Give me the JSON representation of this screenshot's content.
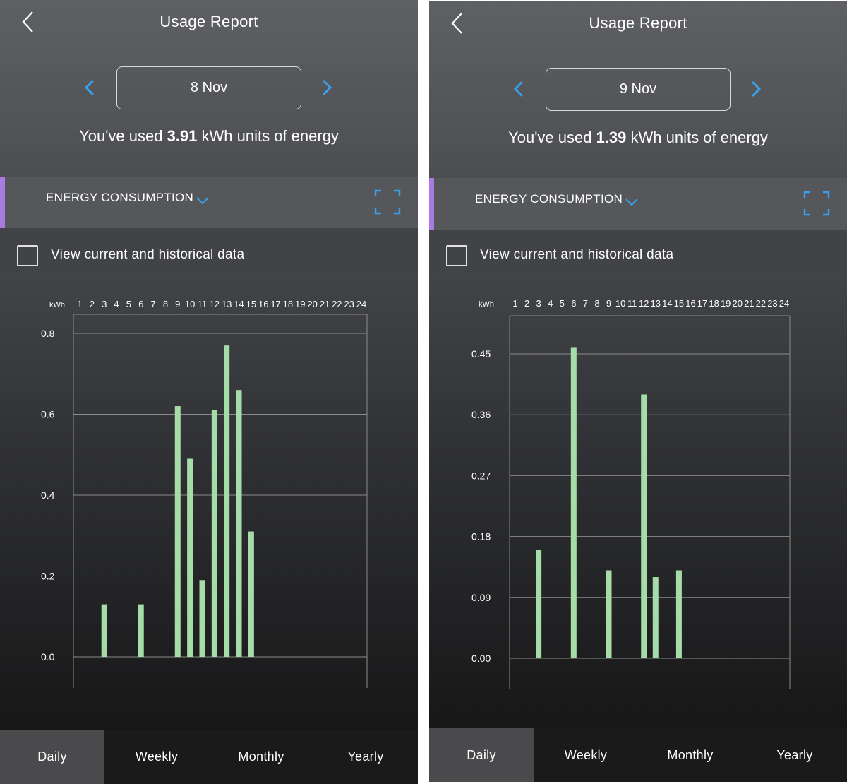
{
  "colors": {
    "accent": "#a97be0",
    "arrow": "#3aa0e8",
    "bar": "#a6dca8",
    "grid": "#8a8a8a",
    "active_tab": "#4a4a4c"
  },
  "icons": {
    "back": "chevron-left-icon",
    "prev": "chevron-left-icon",
    "next": "chevron-right-icon",
    "dropdown": "chevron-down-icon",
    "expand": "expand-icon",
    "checkbox": "checkbox-icon"
  },
  "left": {
    "title": "Usage Report",
    "date": "8 Nov",
    "usage": {
      "prefix": "You've used ",
      "value": "3.91",
      "suffix": " kWh units of energy"
    },
    "section_label": "ENERGY CONSUMPTION",
    "historical_label": "View current and historical data",
    "tabs": [
      {
        "label": "Daily",
        "active": true
      },
      {
        "label": "Weekly",
        "active": false
      },
      {
        "label": "Monthly",
        "active": false
      },
      {
        "label": "Yearly",
        "active": false
      }
    ]
  },
  "right": {
    "title": "Usage Report",
    "date": "9 Nov",
    "usage": {
      "prefix": "You've used ",
      "value": "1.39",
      "suffix": " kWh units of energy"
    },
    "section_label": "ENERGY CONSUMPTION",
    "historical_label": "View current and historical data",
    "tabs": [
      {
        "label": "Daily",
        "active": true
      },
      {
        "label": "Weekly",
        "active": false
      },
      {
        "label": "Monthly",
        "active": false
      },
      {
        "label": "Yearly",
        "active": false
      }
    ]
  },
  "chart_data": [
    {
      "type": "bar",
      "ylabel": "kWh",
      "categories": [
        "1",
        "2",
        "3",
        "4",
        "5",
        "6",
        "7",
        "8",
        "9",
        "10",
        "11",
        "12",
        "13",
        "14",
        "15",
        "16",
        "17",
        "18",
        "19",
        "20",
        "21",
        "22",
        "23",
        "24"
      ],
      "values": [
        0,
        0,
        0.13,
        0,
        0,
        0.13,
        0,
        0,
        0.62,
        0.49,
        0.19,
        0.61,
        0.77,
        0.66,
        0.31,
        0,
        0,
        0,
        0,
        0,
        0,
        0,
        0,
        0
      ],
      "yticks": [
        "0.0",
        "0.2",
        "0.4",
        "0.6",
        "0.8"
      ],
      "ylim": [
        0,
        0.8
      ],
      "grid": true
    },
    {
      "type": "bar",
      "ylabel": "kWh",
      "categories": [
        "1",
        "2",
        "3",
        "4",
        "5",
        "6",
        "7",
        "8",
        "9",
        "10",
        "11",
        "12",
        "13",
        "14",
        "15",
        "16",
        "17",
        "18",
        "19",
        "20",
        "21",
        "22",
        "23",
        "24"
      ],
      "values": [
        0,
        0,
        0.16,
        0,
        0,
        0.46,
        0,
        0,
        0.13,
        0,
        0,
        0.39,
        0.12,
        0,
        0.13,
        0,
        0,
        0,
        0,
        0,
        0,
        0,
        0,
        0
      ],
      "yticks": [
        "0.00",
        "0.09",
        "0.18",
        "0.27",
        "0.36",
        "0.45"
      ],
      "ylim": [
        0,
        0.45
      ],
      "grid": true
    }
  ]
}
